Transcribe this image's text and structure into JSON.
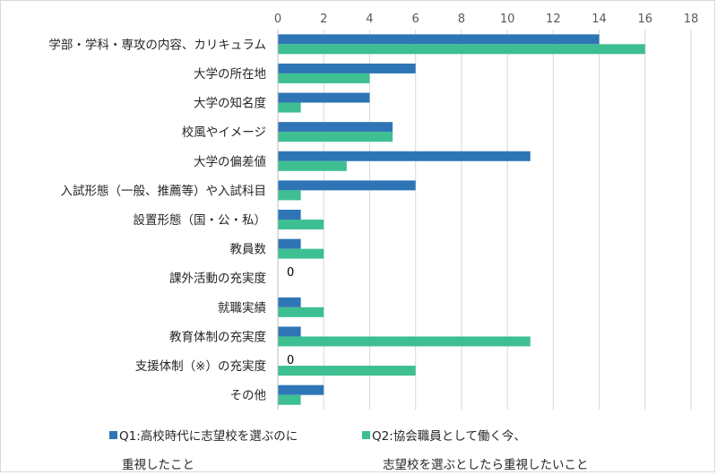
{
  "chart_data": {
    "type": "bar",
    "orientation": "horizontal",
    "categories": [
      "学部・学科・専攻の内容、カリキュラム",
      "大学の所在地",
      "大学の知名度",
      "校風やイメージ",
      "大学の偏差値",
      "入試形態（一般、推薦等）や入試科目",
      "設置形態（国・公・私）",
      "教員数",
      "課外活動の充実度",
      "就職実績",
      "教育体制の充実度",
      "支援体制（※）の充実度",
      "その他"
    ],
    "series": [
      {
        "name_line1": "Q1:高校時代に志望校を選ぶのに",
        "name_line2": "重視したこと",
        "color": "#2e75b6",
        "values": [
          14,
          6,
          4,
          5,
          11,
          6,
          1,
          1,
          0,
          1,
          1,
          0,
          2
        ]
      },
      {
        "name_line1": "Q2:協会職員として働く今、",
        "name_line2": "志望校を選ぶとしたら重視したいこと",
        "color": "#3dbf91",
        "values": [
          16,
          4,
          1,
          5,
          3,
          1,
          2,
          2,
          0,
          2,
          11,
          6,
          1
        ]
      }
    ],
    "zero_labels": [
      {
        "category_index": 8,
        "text": "0"
      },
      {
        "category_index": 11,
        "text": "0"
      }
    ],
    "xlim": [
      0,
      18
    ],
    "xticks": [
      "0",
      "2",
      "4",
      "6",
      "8",
      "10",
      "12",
      "14",
      "16",
      "18"
    ],
    "x_axis_position": "top",
    "grid": true,
    "grid_color": "#d9d9d9",
    "legend_position": "bottom"
  }
}
